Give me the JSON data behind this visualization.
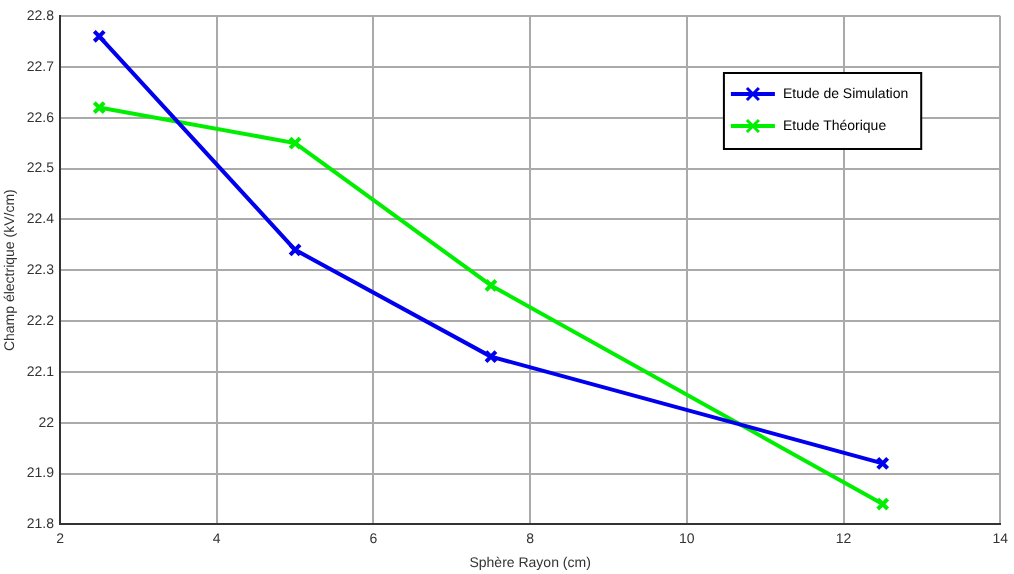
{
  "chart_data": {
    "type": "line",
    "xlabel": "Sphère Rayon (cm)",
    "ylabel": "Champ électrique (kV/cm)",
    "x": [
      2.5,
      5,
      7.5,
      12.5
    ],
    "series": [
      {
        "name": "Etude de Simulation",
        "color": "#0000ee",
        "values": [
          22.76,
          22.34,
          22.13,
          21.92
        ]
      },
      {
        "name": "Etude Théorique",
        "color": "#00ee00",
        "values": [
          22.62,
          22.55,
          22.27,
          21.84
        ]
      }
    ],
    "xlim": [
      2,
      14
    ],
    "xticks": [
      2,
      4,
      6,
      8,
      10,
      12,
      14
    ],
    "ylim": [
      21.8,
      22.8
    ],
    "yticks": [
      21.8,
      21.9,
      22,
      22.1,
      22.2,
      22.3,
      22.4,
      22.5,
      22.6,
      22.7,
      22.8
    ],
    "grid": true,
    "legend": "top right",
    "marker": "cross",
    "line_style": "solid"
  }
}
